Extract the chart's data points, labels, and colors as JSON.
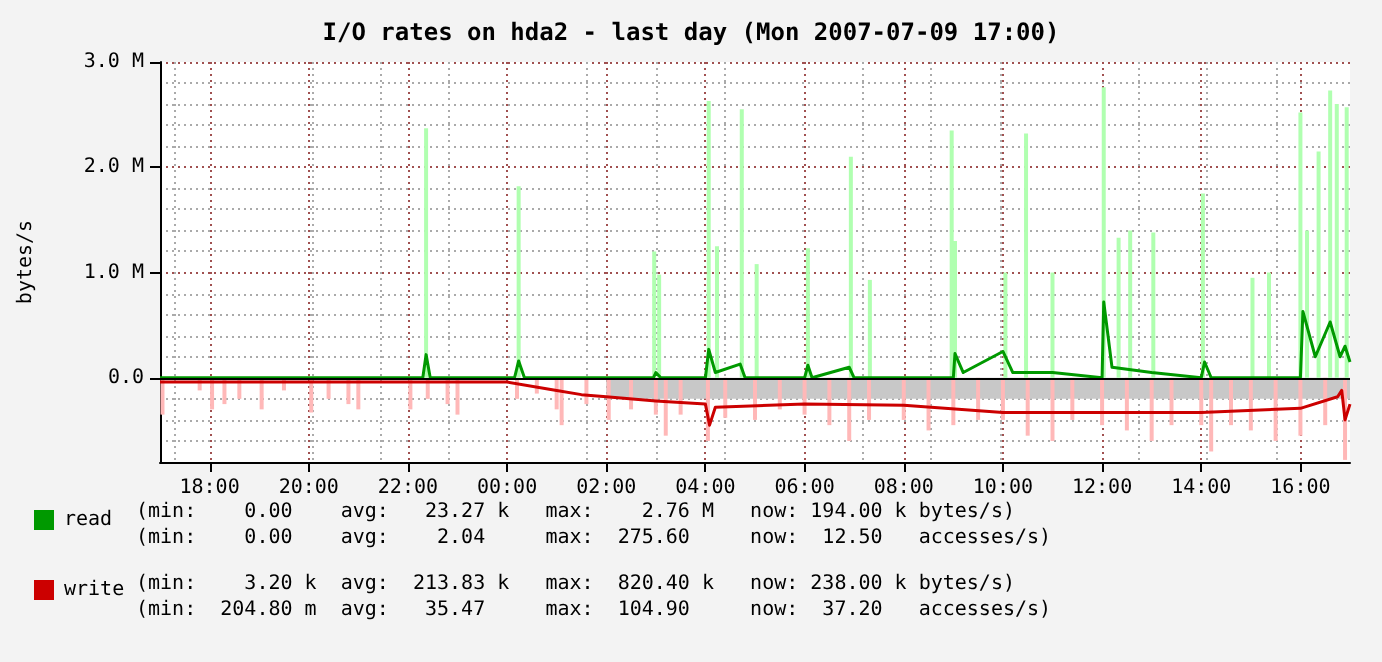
{
  "chart_data": {
    "type": "line",
    "title": "I/O rates on hda2 - last day (Mon 2007-07-09 17:00)",
    "ylabel": "bytes/s",
    "xlim": [
      "2007-07-08T17:00",
      "2007-07-09T17:00"
    ],
    "xticks": [
      {
        "value": "2007-07-08T18:00",
        "label": "18:00"
      },
      {
        "value": "2007-07-08T20:00",
        "label": "20:00"
      },
      {
        "value": "2007-07-08T22:00",
        "label": "22:00"
      },
      {
        "value": "2007-07-09T00:00",
        "label": "00:00"
      },
      {
        "value": "2007-07-09T02:00",
        "label": "02:00"
      },
      {
        "value": "2007-07-09T04:00",
        "label": "04:00"
      },
      {
        "value": "2007-07-09T06:00",
        "label": "06:00"
      },
      {
        "value": "2007-07-09T08:00",
        "label": "08:00"
      },
      {
        "value": "2007-07-09T10:00",
        "label": "10:00"
      },
      {
        "value": "2007-07-09T12:00",
        "label": "12:00"
      },
      {
        "value": "2007-07-09T14:00",
        "label": "14:00"
      },
      {
        "value": "2007-07-09T16:00",
        "label": "16:00"
      }
    ],
    "ylim": [
      -0.8,
      3.0
    ],
    "yticks": [
      {
        "value": 0,
        "label": "0.0"
      },
      {
        "value": 1,
        "label": "1.0 M"
      },
      {
        "value": 2,
        "label": "2.0 M"
      },
      {
        "value": 3,
        "label": "3.0 M"
      }
    ],
    "grid": true,
    "legend": "bottom left",
    "marker": "none",
    "ref_lines": [
      {
        "axis": "y",
        "value": 0,
        "color": "#000000"
      }
    ],
    "annotations": [
      "(min:    0.00    avg:   23.27 k   max:    2.76 M   now: 194.00 k bytes/s)",
      "(min:    0.00    avg:    2.04     max:  275.60     now:  12.50   accesses/s)",
      "(min:    3.20 k  avg:  213.83 k   max:  820.40 k   now: 238.00 k bytes/s)",
      "(min:  204.80 m  avg:   35.47     max:  104.90     now:  37.20   accesses/s)"
    ],
    "series": [
      {
        "type": "bar",
        "color": "#ffb8b8",
        "x": [
          "2007-07-08T17:03",
          "2007-07-08T17:48",
          "2007-07-08T18:03",
          "2007-07-08T18:18",
          "2007-07-08T18:36",
          "2007-07-08T19:03",
          "2007-07-08T19:30",
          "2007-07-08T20:03",
          "2007-07-08T20:24",
          "2007-07-08T20:48",
          "2007-07-08T21:00",
          "2007-07-08T22:03",
          "2007-07-08T22:24",
          "2007-07-08T22:48",
          "2007-07-08T23:00",
          "2007-07-09T00:12",
          "2007-07-09T00:36",
          "2007-07-09T01:00",
          "2007-07-09T01:06",
          "2007-07-09T01:36",
          "2007-07-09T02:03",
          "2007-07-09T02:30",
          "2007-07-09T03:00",
          "2007-07-09T03:12",
          "2007-07-09T03:30",
          "2007-07-09T04:03",
          "2007-07-09T04:24",
          "2007-07-09T05:00",
          "2007-07-09T05:30",
          "2007-07-09T06:00",
          "2007-07-09T06:30",
          "2007-07-09T06:54",
          "2007-07-09T07:18",
          "2007-07-09T08:00",
          "2007-07-09T08:30",
          "2007-07-09T09:00",
          "2007-07-09T09:30",
          "2007-07-09T10:00",
          "2007-07-09T10:30",
          "2007-07-09T11:00",
          "2007-07-09T11:24",
          "2007-07-09T12:00",
          "2007-07-09T12:30",
          "2007-07-09T13:00",
          "2007-07-09T13:24",
          "2007-07-09T14:00",
          "2007-07-09T14:12",
          "2007-07-09T14:36",
          "2007-07-09T15:00",
          "2007-07-09T15:30",
          "2007-07-09T16:00",
          "2007-07-09T16:30",
          "2007-07-09T16:54"
        ],
        "values": [
          -0.35,
          -0.12,
          -0.3,
          -0.25,
          -0.2,
          -0.3,
          -0.12,
          -0.33,
          -0.2,
          -0.25,
          -0.3,
          -0.3,
          -0.2,
          -0.25,
          -0.35,
          -0.2,
          -0.15,
          -0.3,
          -0.45,
          -0.25,
          -0.4,
          -0.3,
          -0.35,
          -0.55,
          -0.35,
          -0.6,
          -0.38,
          -0.4,
          -0.3,
          -0.35,
          -0.45,
          -0.6,
          -0.4,
          -0.4,
          -0.5,
          -0.45,
          -0.4,
          -0.4,
          -0.55,
          -0.6,
          -0.4,
          -0.45,
          -0.5,
          -0.6,
          -0.45,
          -0.45,
          -0.7,
          -0.45,
          -0.5,
          -0.6,
          -0.55,
          -0.45,
          -0.78
        ]
      },
      {
        "type": "area",
        "color": "#c8c8c8",
        "x": [
          "2007-07-09T02:00",
          "2007-07-09T17:00"
        ],
        "values": [
          -0.2,
          -0.2
        ]
      },
      {
        "type": "bar",
        "color": "#b0ffb0",
        "x": [
          "2007-07-08T22:22",
          "2007-07-09T00:14",
          "2007-07-09T02:58",
          "2007-07-09T03:04",
          "2007-07-09T04:04",
          "2007-07-09T04:14",
          "2007-07-09T04:44",
          "2007-07-09T05:02",
          "2007-07-09T06:04",
          "2007-07-09T06:56",
          "2007-07-09T07:19",
          "2007-07-09T08:58",
          "2007-07-09T09:02",
          "2007-07-09T10:03",
          "2007-07-09T10:28",
          "2007-07-09T11:00",
          "2007-07-09T12:02",
          "2007-07-09T12:20",
          "2007-07-09T12:34",
          "2007-07-09T13:02",
          "2007-07-09T14:02",
          "2007-07-09T15:02",
          "2007-07-09T15:22",
          "2007-07-09T16:00",
          "2007-07-09T16:08",
          "2007-07-09T16:22",
          "2007-07-09T16:36",
          "2007-07-09T16:44",
          "2007-07-09T16:56"
        ],
        "values": [
          2.37,
          1.82,
          1.2,
          0.98,
          2.63,
          1.25,
          2.55,
          1.08,
          1.23,
          2.1,
          0.93,
          2.35,
          1.3,
          1.0,
          2.32,
          1.0,
          2.76,
          1.33,
          1.4,
          1.38,
          1.75,
          0.95,
          1.0,
          2.52,
          1.4,
          2.15,
          2.73,
          2.6,
          2.57
        ]
      },
      {
        "name": "read",
        "color": "#009900",
        "x": [
          "2007-07-08T17:00",
          "2007-07-08T22:18",
          "2007-07-08T22:22",
          "2007-07-08T22:27",
          "2007-07-09T00:09",
          "2007-07-09T00:14",
          "2007-07-09T00:21",
          "2007-07-09T02:57",
          "2007-07-09T03:00",
          "2007-07-09T03:06",
          "2007-07-09T04:00",
          "2007-07-09T04:04",
          "2007-07-09T04:12",
          "2007-07-09T04:42",
          "2007-07-09T04:48",
          "2007-07-09T06:00",
          "2007-07-09T06:04",
          "2007-07-09T06:09",
          "2007-07-09T06:54",
          "2007-07-09T07:00",
          "2007-07-09T09:00",
          "2007-07-09T09:02",
          "2007-07-09T09:12",
          "2007-07-09T10:00",
          "2007-07-09T10:12",
          "2007-07-09T11:00",
          "2007-07-09T12:00",
          "2007-07-09T12:02",
          "2007-07-09T12:12",
          "2007-07-09T13:00",
          "2007-07-09T14:00",
          "2007-07-09T14:04",
          "2007-07-09T14:12",
          "2007-07-09T16:00",
          "2007-07-09T16:03",
          "2007-07-09T16:18",
          "2007-07-09T16:36",
          "2007-07-09T16:48",
          "2007-07-09T16:54",
          "2007-07-09T17:00"
        ],
        "values": [
          0,
          0,
          0.22,
          0,
          0,
          0.16,
          0,
          0,
          0.05,
          0,
          0,
          0.27,
          0.05,
          0.13,
          0,
          0,
          0.12,
          0,
          0.1,
          0,
          0,
          0.23,
          0.05,
          0.25,
          0.05,
          0.05,
          0,
          0.72,
          0.1,
          0.05,
          0,
          0.15,
          0,
          0,
          0.63,
          0.2,
          0.53,
          0.2,
          0.3,
          0.15
        ]
      },
      {
        "name": "write",
        "color": "#cc0000",
        "x": [
          "2007-07-08T17:00",
          "2007-07-09T00:00",
          "2007-07-09T01:00",
          "2007-07-09T01:30",
          "2007-07-09T02:00",
          "2007-07-09T03:00",
          "2007-07-09T04:00",
          "2007-07-09T04:05",
          "2007-07-09T04:12",
          "2007-07-09T06:00",
          "2007-07-09T08:00",
          "2007-07-09T10:00",
          "2007-07-09T12:00",
          "2007-07-09T14:00",
          "2007-07-09T16:00",
          "2007-07-09T16:45",
          "2007-07-09T16:50",
          "2007-07-09T16:54",
          "2007-07-09T17:00"
        ],
        "values": [
          -0.04,
          -0.04,
          -0.12,
          -0.16,
          -0.18,
          -0.22,
          -0.25,
          -0.45,
          -0.28,
          -0.25,
          -0.26,
          -0.33,
          -0.33,
          -0.33,
          -0.29,
          -0.18,
          -0.12,
          -0.4,
          -0.25
        ]
      }
    ]
  }
}
